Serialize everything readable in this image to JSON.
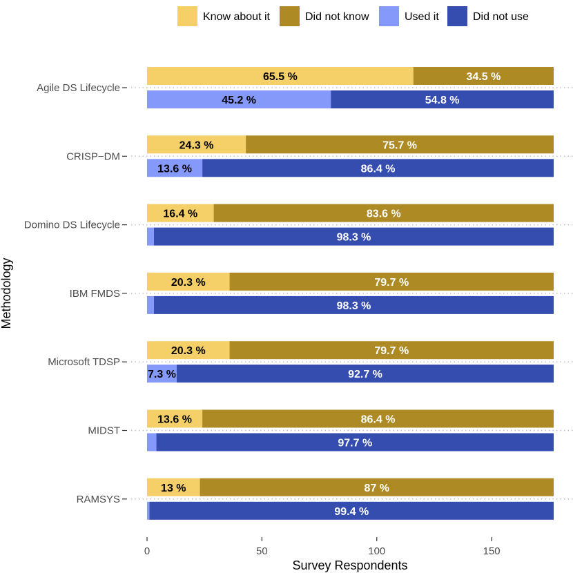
{
  "chart_data": {
    "type": "bar",
    "orientation": "horizontal-stacked",
    "xlabel": "Survey Respondents",
    "ylabel": "Methodology",
    "xlim": [
      0,
      177
    ],
    "xticks": [
      0,
      50,
      100,
      150
    ],
    "total_respondents": 177,
    "grid": "dotted line at each category",
    "legend": {
      "position": "top",
      "entries": [
        {
          "name": "Know about it",
          "color": "#F5D068"
        },
        {
          "name": "Did not know",
          "color": "#AD8A24"
        },
        {
          "name": "Used it",
          "color": "#8499FA"
        },
        {
          "name": "Did not use",
          "color": "#344DAF"
        }
      ]
    },
    "categories": [
      "Agile DS Lifecycle",
      "CRISP−DM",
      "Domino DS Lifecycle",
      "IBM FMDS",
      "Microsoft TDSP",
      "MIDST",
      "RAMSYS"
    ],
    "series": [
      {
        "name": "Know about it",
        "group": "knowledge",
        "values": [
          65.5,
          24.3,
          16.4,
          20.3,
          20.3,
          13.6,
          13
        ],
        "labels": [
          "65.5 %",
          "24.3 %",
          "16.4 %",
          "20.3 %",
          "20.3 %",
          "13.6 %",
          "13 %"
        ]
      },
      {
        "name": "Did not know",
        "group": "knowledge",
        "values": [
          34.5,
          75.7,
          83.6,
          79.7,
          79.7,
          86.4,
          87
        ],
        "labels": [
          "34.5 %",
          "75.7 %",
          "83.6 %",
          "79.7 %",
          "79.7 %",
          "86.4 %",
          "87 %"
        ]
      },
      {
        "name": "Used it",
        "group": "usage",
        "values": [
          45.2,
          13.6,
          1.7,
          1.7,
          7.3,
          2.3,
          0.6
        ],
        "labels": [
          "45.2 %",
          "13.6 %",
          "",
          "",
          "7.3 %",
          "",
          ""
        ]
      },
      {
        "name": "Did not use",
        "group": "usage",
        "values": [
          54.8,
          86.4,
          98.3,
          98.3,
          92.7,
          97.7,
          99.4
        ],
        "labels": [
          "54.8 %",
          "86.4 %",
          "98.3 %",
          "98.3 %",
          "92.7 %",
          "97.7 %",
          "99.4 %"
        ]
      }
    ]
  }
}
